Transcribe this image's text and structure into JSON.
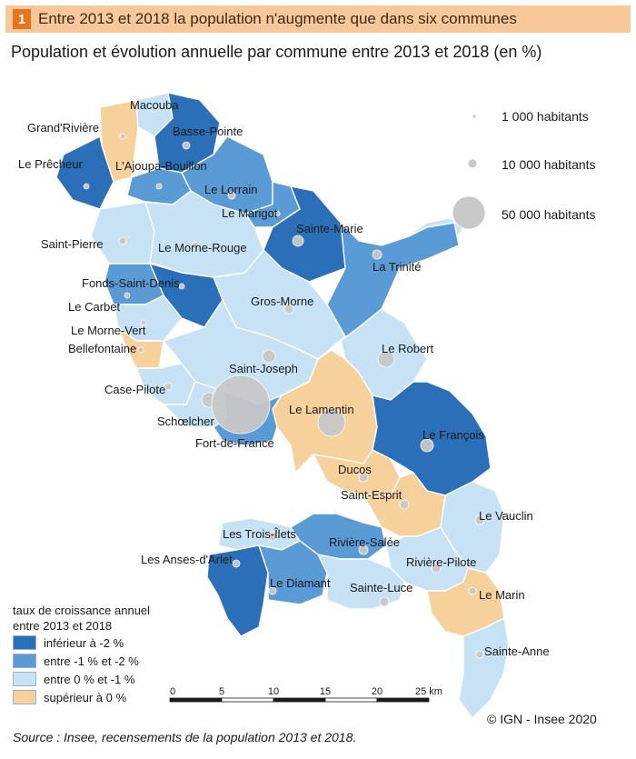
{
  "banner": {
    "number": "1",
    "title": "Entre 2013 et 2018 la population n'augmente que dans six communes"
  },
  "subtitle": "Population et évolution annuelle par commune entre 2013 et 2018 (en %)",
  "colors": {
    "inf_-2": "#2b6fb8",
    "entre_-1_-2": "#5b9bd5",
    "entre_0_-1": "#c7e2f5",
    "sup_0": "#f7d19b",
    "border": "#ffffff",
    "circle": "#c8c8c8"
  },
  "communes": [
    {
      "name": "Grand'Rivière",
      "class": "sup_0"
    },
    {
      "name": "Macouba",
      "class": "entre_0_-1"
    },
    {
      "name": "Basse-Pointe",
      "class": "inf_-2"
    },
    {
      "name": "Le Prêcheur",
      "class": "inf_-2"
    },
    {
      "name": "L'Ajoupa-Bouillon",
      "class": "entre_-1_-2"
    },
    {
      "name": "Le Lorrain",
      "class": "entre_-1_-2"
    },
    {
      "name": "Le Marigot",
      "class": "entre_-1_-2"
    },
    {
      "name": "Sainte-Marie",
      "class": "inf_-2"
    },
    {
      "name": "Saint-Pierre",
      "class": "entre_0_-1"
    },
    {
      "name": "Le Morne-Rouge",
      "class": "entre_0_-1"
    },
    {
      "name": "La Trinité",
      "class": "entre_-1_-2"
    },
    {
      "name": "Fonds-Saint-Denis",
      "class": "inf_-2"
    },
    {
      "name": "Le Carbet",
      "class": "entre_-1_-2"
    },
    {
      "name": "Gros-Morne",
      "class": "entre_0_-1"
    },
    {
      "name": "Le Morne-Vert",
      "class": "entre_0_-1"
    },
    {
      "name": "Bellefontaine",
      "class": "sup_0"
    },
    {
      "name": "Le Robert",
      "class": "entre_0_-1"
    },
    {
      "name": "Saint-Joseph",
      "class": "entre_0_-1"
    },
    {
      "name": "Case-Pilote",
      "class": "entre_0_-1"
    },
    {
      "name": "Schœlcher",
      "class": "entre_0_-1"
    },
    {
      "name": "Le Lamentin",
      "class": "sup_0"
    },
    {
      "name": "Fort-de-France",
      "class": "entre_-1_-2"
    },
    {
      "name": "Le François",
      "class": "inf_-2"
    },
    {
      "name": "Ducos",
      "class": "sup_0"
    },
    {
      "name": "Saint-Esprit",
      "class": "sup_0"
    },
    {
      "name": "Le Vauclin",
      "class": "entre_0_-1"
    },
    {
      "name": "Les Trois-Îlets",
      "class": "entre_0_-1"
    },
    {
      "name": "Rivière-Salée",
      "class": "entre_-1_-2"
    },
    {
      "name": "Les Anses-d'Arlet",
      "class": "inf_-2"
    },
    {
      "name": "Rivière-Pilote",
      "class": "entre_0_-1"
    },
    {
      "name": "Le Diamant",
      "class": "entre_-1_-2"
    },
    {
      "name": "Sainte-Luce",
      "class": "entre_0_-1"
    },
    {
      "name": "Le Marin",
      "class": "sup_0"
    },
    {
      "name": "Sainte-Anne",
      "class": "entre_0_-1"
    }
  ],
  "circle_legend": [
    {
      "label": "1 000 habitants",
      "value": 1000
    },
    {
      "label": "10 000 habitants",
      "value": 10000
    },
    {
      "label": "50 000 habitants",
      "value": 50000
    }
  ],
  "legend": {
    "title_line1": "taux de croissance annuel",
    "title_line2": "entre 2013 et 2018",
    "items": [
      {
        "label": "inférieur à -2 %",
        "class": "inf_-2"
      },
      {
        "label": "entre -1 % et -2 %",
        "class": "entre_-1_-2"
      },
      {
        "label": "entre 0 % et -1 %",
        "class": "entre_0_-1"
      },
      {
        "label": "supérieur à 0 %",
        "class": "sup_0"
      }
    ]
  },
  "scale": {
    "ticks": [
      "0",
      "5",
      "10",
      "15",
      "20",
      "25 km"
    ]
  },
  "copyright": "© IGN - Insee 2020",
  "source": "Source : Insee, recensements de la population 2013 et 2018."
}
